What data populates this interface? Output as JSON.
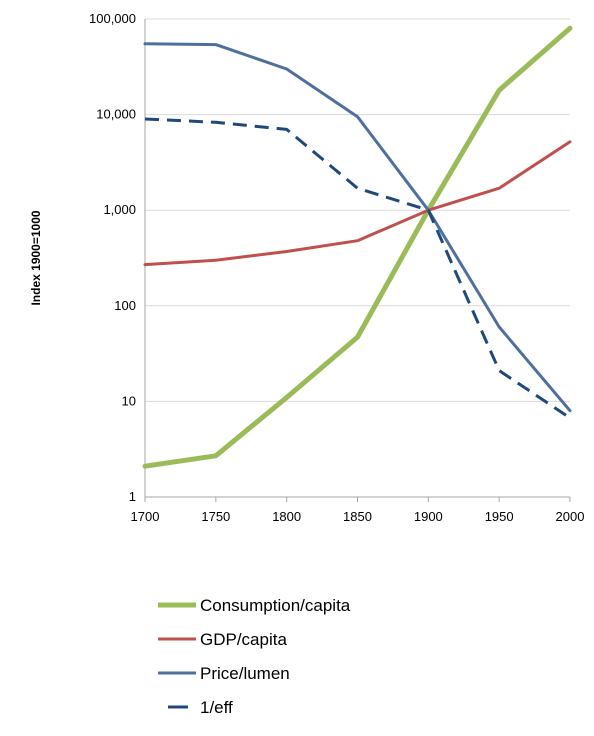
{
  "chart_data": {
    "type": "line",
    "title": "",
    "xlabel": "",
    "ylabel": "Index 1900=1000",
    "y_scale": "log",
    "ylim": [
      1,
      100000
    ],
    "xlim": [
      1700,
      2000
    ],
    "grid": "horizontal",
    "legend_position": "bottom",
    "x": [
      1700,
      1750,
      1800,
      1850,
      1900,
      1950,
      2000
    ],
    "x_tick_labels": [
      "1700",
      "1750",
      "1800",
      "1850",
      "1900",
      "1950",
      "2000"
    ],
    "y_ticks": [
      1,
      10,
      100,
      1000,
      10000,
      100000
    ],
    "y_tick_labels": [
      "1",
      "10",
      "100",
      "1,000",
      "10,000",
      "100,000"
    ],
    "series": [
      {
        "name": "Consumption/capita",
        "color": "#9BBB59",
        "style": "solid",
        "values": [
          2.1,
          2.7,
          11,
          47,
          1000,
          18000,
          80000
        ]
      },
      {
        "name": "GDP/capita",
        "color": "#C0504D",
        "style": "solid",
        "values": [
          270,
          300,
          370,
          480,
          1000,
          1700,
          5200
        ]
      },
      {
        "name": "Price/lumen",
        "color": "#4F6F9E",
        "style": "solid",
        "values": [
          55000,
          54000,
          30000,
          9500,
          1000,
          60,
          8
        ]
      },
      {
        "name": "1/eff",
        "color": "#1F497D",
        "style": "dashed",
        "values": [
          9000,
          8300,
          7000,
          1700,
          1000,
          21,
          6.7
        ]
      }
    ]
  }
}
